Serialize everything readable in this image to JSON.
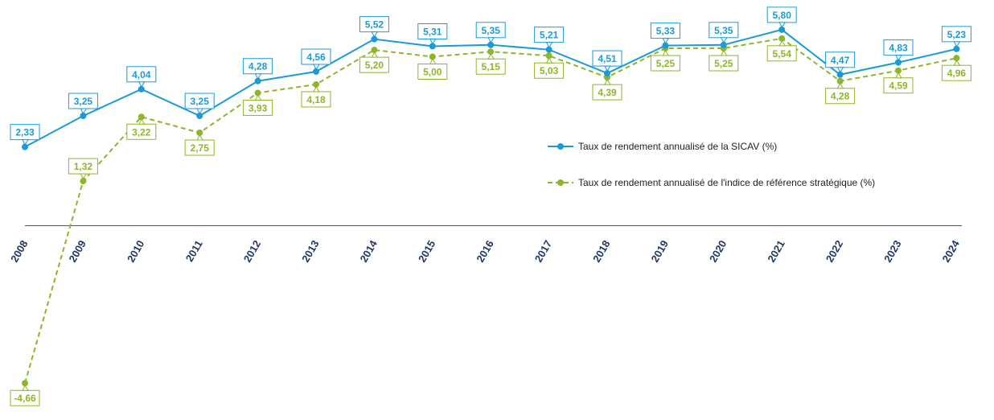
{
  "chart_data": {
    "type": "line",
    "categories": [
      "2008",
      "2009",
      "2010",
      "2011",
      "2012",
      "2013",
      "2014",
      "2015",
      "2016",
      "2017",
      "2018",
      "2019",
      "2020",
      "2021",
      "2022",
      "2023",
      "2024"
    ],
    "series": [
      {
        "name": "Taux de rendement annualisé de la SICAV (%)",
        "values": [
          2.33,
          3.25,
          4.04,
          3.25,
          4.28,
          4.56,
          5.52,
          5.31,
          5.35,
          5.21,
          4.51,
          5.33,
          5.35,
          5.8,
          4.47,
          4.83,
          5.23
        ],
        "labels": [
          "2,33",
          "3,25",
          "4,04",
          "3,25",
          "4,28",
          "4,56",
          "5,52",
          "5,31",
          "5,35",
          "5,21",
          "4,51",
          "5,33",
          "5,35",
          "5,80",
          "4,47",
          "4,83",
          "5,23"
        ],
        "color": "#1a9bd7",
        "style": "solid"
      },
      {
        "name": "Taux de rendement annualisé de l'indice de référence stratégique (%)",
        "values": [
          -4.66,
          1.32,
          3.22,
          2.75,
          3.93,
          4.18,
          5.2,
          5.0,
          5.15,
          5.03,
          4.39,
          5.25,
          5.25,
          5.54,
          4.28,
          4.59,
          4.96
        ],
        "labels": [
          "-4,66",
          "1,32",
          "3,22",
          "2,75",
          "3,93",
          "4,18",
          "5,20",
          "5,00",
          "5,15",
          "5,03",
          "4,39",
          "5,25",
          "5,25",
          "5,54",
          "4,28",
          "4,59",
          "4,96"
        ],
        "color": "#8db62a",
        "style": "dashed"
      }
    ],
    "legend_position": "right",
    "grid": false,
    "zero_line": true
  }
}
